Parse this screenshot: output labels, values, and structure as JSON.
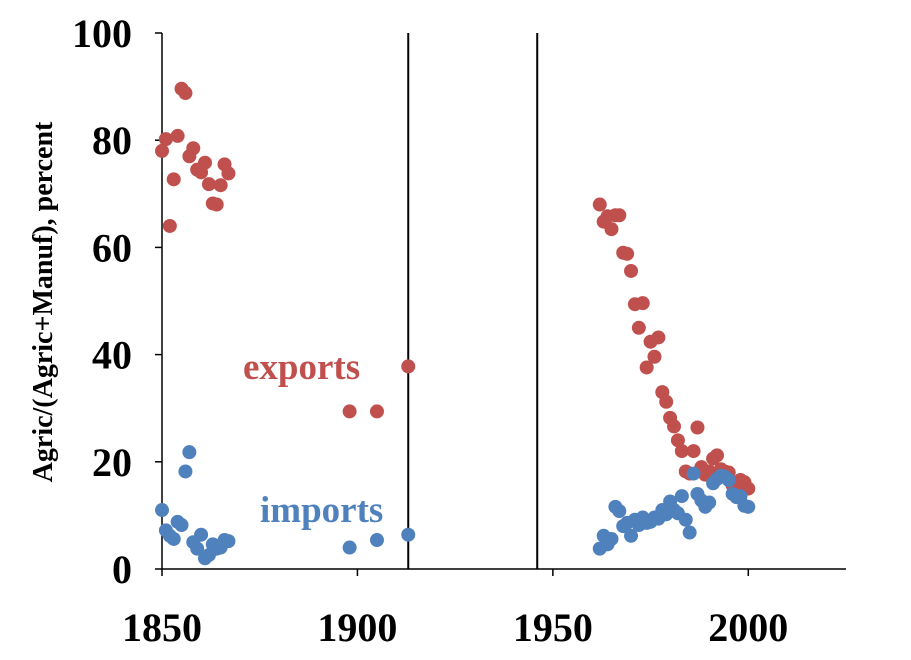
{
  "chart_data": {
    "type": "scatter",
    "title": "",
    "xlabel": "",
    "ylabel": "Agric/(Agric+Manuf), percent",
    "xlim": [
      1850,
      2025
    ],
    "ylim": [
      0,
      100
    ],
    "x_ticks": [
      1850,
      1900,
      1950,
      2000
    ],
    "y_ticks": [
      0,
      20,
      40,
      60,
      80,
      100
    ],
    "x_tick_labels": [
      "1850",
      "1900",
      "1950",
      "2000"
    ],
    "y_tick_labels": [
      "0",
      "20",
      "40",
      "60",
      "80",
      "100"
    ],
    "grid": false,
    "legend": "none",
    "vertical_lines": [
      1913,
      1946
    ],
    "series": [
      {
        "name": "exports",
        "color": "#c0504d",
        "points": [
          [
            1850,
            78
          ],
          [
            1851,
            80.2
          ],
          [
            1852,
            64
          ],
          [
            1853,
            72.7
          ],
          [
            1854,
            80.8
          ],
          [
            1855,
            89.6
          ],
          [
            1856,
            88.8
          ],
          [
            1857,
            77
          ],
          [
            1858,
            78.5
          ],
          [
            1859,
            74.5
          ],
          [
            1860,
            74
          ],
          [
            1861,
            75.8
          ],
          [
            1862,
            71.8
          ],
          [
            1863,
            68.2
          ],
          [
            1864,
            68
          ],
          [
            1865,
            71.6
          ],
          [
            1866,
            75.5
          ],
          [
            1867,
            73.8
          ],
          [
            1898,
            29.4
          ],
          [
            1905,
            29.4
          ],
          [
            1913,
            37.8
          ],
          [
            1962,
            68
          ],
          [
            1963,
            64.8
          ],
          [
            1964,
            65.8
          ],
          [
            1965,
            63.4
          ],
          [
            1966,
            66
          ],
          [
            1967,
            66
          ],
          [
            1968,
            59
          ],
          [
            1969,
            58.8
          ],
          [
            1970,
            55.6
          ],
          [
            1971,
            49.4
          ],
          [
            1972,
            45
          ],
          [
            1973,
            49.6
          ],
          [
            1974,
            37.6
          ],
          [
            1975,
            42.4
          ],
          [
            1976,
            39.6
          ],
          [
            1977,
            43.2
          ],
          [
            1978,
            33
          ],
          [
            1979,
            31.2
          ],
          [
            1980,
            28.2
          ],
          [
            1981,
            26.6
          ],
          [
            1982,
            24
          ],
          [
            1983,
            22
          ],
          [
            1984,
            18.2
          ],
          [
            1985,
            17.8
          ],
          [
            1986,
            22
          ],
          [
            1987,
            26.4
          ],
          [
            1988,
            19
          ],
          [
            1989,
            17.6
          ],
          [
            1990,
            18.2
          ],
          [
            1991,
            20.6
          ],
          [
            1992,
            21.2
          ],
          [
            1993,
            18.6
          ],
          [
            1994,
            18.2
          ],
          [
            1995,
            18
          ],
          [
            1996,
            15.6
          ],
          [
            1997,
            14.4
          ],
          [
            1998,
            16.6
          ],
          [
            1999,
            16.2
          ],
          [
            2000,
            15
          ]
        ]
      },
      {
        "name": "imports",
        "color": "#4f81bd",
        "points": [
          [
            1850,
            11
          ],
          [
            1851,
            7.2
          ],
          [
            1852,
            6.2
          ],
          [
            1853,
            5.6
          ],
          [
            1854,
            8.8
          ],
          [
            1855,
            8.2
          ],
          [
            1856,
            18.2
          ],
          [
            1857,
            21.8
          ],
          [
            1858,
            5
          ],
          [
            1859,
            3.8
          ],
          [
            1860,
            6.4
          ],
          [
            1861,
            2
          ],
          [
            1862,
            2.6
          ],
          [
            1863,
            4.6
          ],
          [
            1864,
            3.8
          ],
          [
            1865,
            4
          ],
          [
            1866,
            5.4
          ],
          [
            1867,
            5.2
          ],
          [
            1898,
            4
          ],
          [
            1905,
            5.4
          ],
          [
            1913,
            6.4
          ],
          [
            1962,
            3.8
          ],
          [
            1963,
            6.2
          ],
          [
            1964,
            4.6
          ],
          [
            1965,
            5.6
          ],
          [
            1966,
            11.6
          ],
          [
            1967,
            10.8
          ],
          [
            1968,
            8
          ],
          [
            1969,
            8.6
          ],
          [
            1970,
            6.2
          ],
          [
            1971,
            9.2
          ],
          [
            1972,
            8.2
          ],
          [
            1973,
            9.6
          ],
          [
            1974,
            8.6
          ],
          [
            1975,
            8.8
          ],
          [
            1976,
            9.6
          ],
          [
            1977,
            9.4
          ],
          [
            1978,
            11
          ],
          [
            1979,
            10.2
          ],
          [
            1980,
            12.6
          ],
          [
            1981,
            11
          ],
          [
            1982,
            10.4
          ],
          [
            1983,
            13.6
          ],
          [
            1984,
            9.2
          ],
          [
            1985,
            6.8
          ],
          [
            1986,
            17.8
          ],
          [
            1987,
            14
          ],
          [
            1988,
            12.8
          ],
          [
            1989,
            11.6
          ],
          [
            1990,
            12.4
          ],
          [
            1991,
            16
          ],
          [
            1992,
            16.8
          ],
          [
            1993,
            17.4
          ],
          [
            1994,
            17.2
          ],
          [
            1995,
            16.6
          ],
          [
            1996,
            14
          ],
          [
            1997,
            13.4
          ],
          [
            1998,
            13.6
          ],
          [
            1999,
            11.8
          ],
          [
            2000,
            11.6
          ]
        ]
      }
    ]
  }
}
